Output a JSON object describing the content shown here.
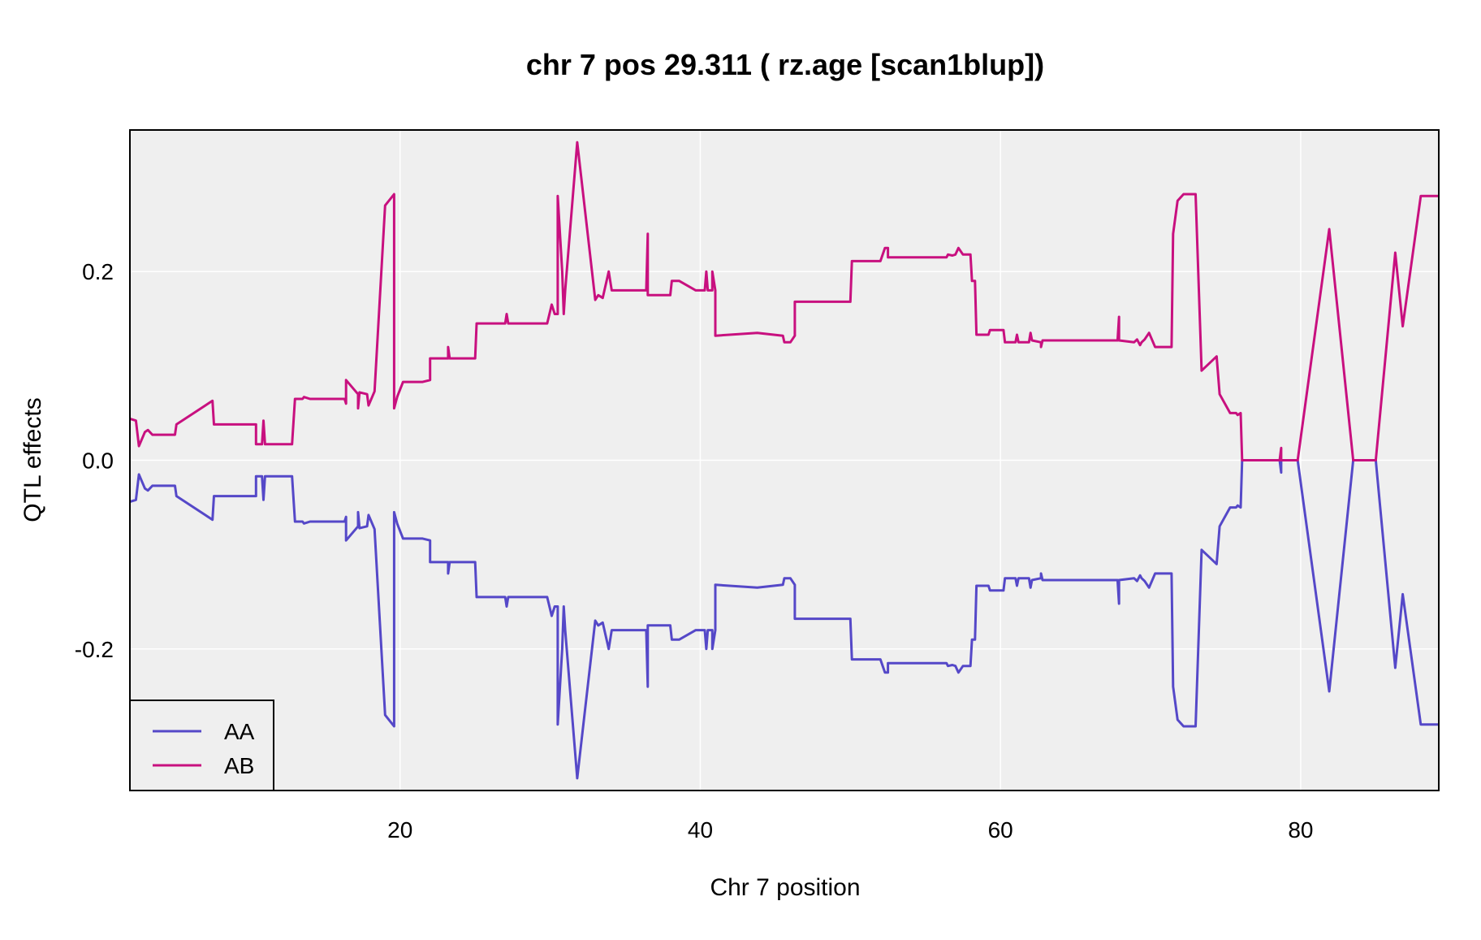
{
  "chart_data": {
    "type": "line",
    "title": "chr 7 pos 29.311 ( rz.age  [scan1blup])",
    "xlabel": "Chr 7 position",
    "ylabel": "QTL effects",
    "xlim": [
      2,
      89.2
    ],
    "ylim": [
      -0.35,
      0.35
    ],
    "x_ticks": [
      "20",
      "40",
      "60",
      "80"
    ],
    "x_tick_values": [
      20,
      40,
      60,
      80
    ],
    "y_ticks": [
      "-0.2",
      "0.0",
      "0.2"
    ],
    "y_tick_values": [
      -0.2,
      0.0,
      0.2
    ],
    "grid": true,
    "legend_position": "bottom-left",
    "colors": {
      "panel_background": "#efefef",
      "grid": "#ffffff",
      "AA": "#5548c8",
      "AB": "#c8107f"
    },
    "series": [
      {
        "name": "AA",
        "color": "#5548c8",
        "points": [
          [
            2.0,
            -0.044
          ],
          [
            2.4,
            -0.042
          ],
          [
            2.6,
            -0.015
          ],
          [
            3.0,
            -0.03
          ],
          [
            3.2,
            -0.032
          ],
          [
            3.5,
            -0.027
          ],
          [
            5.0,
            -0.027
          ],
          [
            5.1,
            -0.038
          ],
          [
            7.5,
            -0.063
          ],
          [
            7.6,
            -0.038
          ],
          [
            10.4,
            -0.038
          ],
          [
            10.4,
            -0.017
          ],
          [
            10.8,
            -0.017
          ],
          [
            10.9,
            -0.042
          ],
          [
            11.0,
            -0.017
          ],
          [
            12.8,
            -0.017
          ],
          [
            13.0,
            -0.065
          ],
          [
            13.5,
            -0.065
          ],
          [
            13.6,
            -0.067
          ],
          [
            14.0,
            -0.065
          ],
          [
            16.3,
            -0.065
          ],
          [
            16.4,
            -0.06
          ],
          [
            16.4,
            -0.085
          ],
          [
            17.2,
            -0.07
          ],
          [
            17.2,
            -0.055
          ],
          [
            17.3,
            -0.072
          ],
          [
            17.8,
            -0.07
          ],
          [
            17.9,
            -0.058
          ],
          [
            18.3,
            -0.073
          ],
          [
            19.0,
            -0.27
          ],
          [
            19.6,
            -0.282
          ],
          [
            19.6,
            -0.055
          ],
          [
            19.8,
            -0.067
          ],
          [
            20.2,
            -0.083
          ],
          [
            21.5,
            -0.083
          ],
          [
            22.0,
            -0.085
          ],
          [
            22.0,
            -0.108
          ],
          [
            23.2,
            -0.108
          ],
          [
            23.2,
            -0.12
          ],
          [
            23.3,
            -0.108
          ],
          [
            25.0,
            -0.108
          ],
          [
            25.1,
            -0.145
          ],
          [
            27.0,
            -0.145
          ],
          [
            27.1,
            -0.155
          ],
          [
            27.2,
            -0.145
          ],
          [
            29.8,
            -0.145
          ],
          [
            30.1,
            -0.165
          ],
          [
            30.3,
            -0.155
          ],
          [
            30.5,
            -0.155
          ],
          [
            30.5,
            -0.28
          ],
          [
            30.8,
            -0.2
          ],
          [
            30.9,
            -0.155
          ],
          [
            31.0,
            -0.18
          ],
          [
            31.8,
            -0.337
          ],
          [
            33.0,
            -0.17
          ],
          [
            33.2,
            -0.175
          ],
          [
            33.5,
            -0.172
          ],
          [
            33.9,
            -0.2
          ],
          [
            34.1,
            -0.18
          ],
          [
            36.4,
            -0.18
          ],
          [
            36.5,
            -0.24
          ],
          [
            36.5,
            -0.175
          ],
          [
            38.0,
            -0.175
          ],
          [
            38.1,
            -0.19
          ],
          [
            38.6,
            -0.19
          ],
          [
            39.7,
            -0.18
          ],
          [
            40.3,
            -0.18
          ],
          [
            40.4,
            -0.2
          ],
          [
            40.5,
            -0.18
          ],
          [
            40.8,
            -0.18
          ],
          [
            40.8,
            -0.2
          ],
          [
            41.0,
            -0.18
          ],
          [
            41.0,
            -0.132
          ],
          [
            43.8,
            -0.135
          ],
          [
            45.5,
            -0.132
          ],
          [
            45.6,
            -0.125
          ],
          [
            46.0,
            -0.125
          ],
          [
            46.3,
            -0.132
          ],
          [
            46.3,
            -0.168
          ],
          [
            50.0,
            -0.168
          ],
          [
            50.1,
            -0.211
          ],
          [
            52.0,
            -0.211
          ],
          [
            52.3,
            -0.225
          ],
          [
            52.5,
            -0.225
          ],
          [
            52.5,
            -0.215
          ],
          [
            56.4,
            -0.215
          ],
          [
            56.5,
            -0.218
          ],
          [
            56.8,
            -0.217
          ],
          [
            57.0,
            -0.218
          ],
          [
            57.2,
            -0.225
          ],
          [
            57.5,
            -0.218
          ],
          [
            58.0,
            -0.218
          ],
          [
            58.1,
            -0.19
          ],
          [
            58.3,
            -0.19
          ],
          [
            58.4,
            -0.133
          ],
          [
            59.2,
            -0.133
          ],
          [
            59.3,
            -0.138
          ],
          [
            60.2,
            -0.138
          ],
          [
            60.3,
            -0.125
          ],
          [
            61.0,
            -0.125
          ],
          [
            61.1,
            -0.133
          ],
          [
            61.2,
            -0.125
          ],
          [
            61.9,
            -0.125
          ],
          [
            62.0,
            -0.135
          ],
          [
            62.1,
            -0.127
          ],
          [
            62.7,
            -0.125
          ],
          [
            62.7,
            -0.12
          ],
          [
            62.8,
            -0.127
          ],
          [
            67.8,
            -0.127
          ],
          [
            67.9,
            -0.152
          ],
          [
            67.9,
            -0.127
          ],
          [
            68.9,
            -0.125
          ],
          [
            69.1,
            -0.128
          ],
          [
            69.3,
            -0.122
          ],
          [
            69.4,
            -0.125
          ],
          [
            69.6,
            -0.128
          ],
          [
            69.9,
            -0.135
          ],
          [
            70.3,
            -0.12
          ],
          [
            71.4,
            -0.12
          ],
          [
            71.5,
            -0.24
          ],
          [
            71.8,
            -0.275
          ],
          [
            72.2,
            -0.282
          ],
          [
            73.0,
            -0.282
          ],
          [
            73.0,
            -0.282
          ],
          [
            73.4,
            -0.095
          ],
          [
            74.4,
            -0.11
          ],
          [
            74.6,
            -0.07
          ],
          [
            75.3,
            -0.05
          ],
          [
            75.7,
            -0.05
          ],
          [
            75.8,
            -0.048
          ],
          [
            76.0,
            -0.05
          ],
          [
            76.1,
            0.0
          ],
          [
            78.6,
            0.0
          ],
          [
            78.7,
            -0.013
          ],
          [
            78.7,
            0.0
          ],
          [
            79.8,
            0.0
          ],
          [
            81.9,
            -0.245
          ],
          [
            83.5,
            -0.0
          ],
          [
            85.0,
            0.0
          ],
          [
            86.3,
            -0.22
          ],
          [
            86.8,
            -0.142
          ],
          [
            88.0,
            -0.28
          ],
          [
            89.2,
            -0.28
          ]
        ]
      },
      {
        "name": "AB",
        "color": "#c8107f",
        "points": [
          [
            2.0,
            0.044
          ],
          [
            2.4,
            0.042
          ],
          [
            2.6,
            0.015
          ],
          [
            3.0,
            0.03
          ],
          [
            3.2,
            0.032
          ],
          [
            3.5,
            0.027
          ],
          [
            5.0,
            0.027
          ],
          [
            5.1,
            0.038
          ],
          [
            7.5,
            0.063
          ],
          [
            7.6,
            0.038
          ],
          [
            10.4,
            0.038
          ],
          [
            10.4,
            0.017
          ],
          [
            10.8,
            0.017
          ],
          [
            10.9,
            0.042
          ],
          [
            11.0,
            0.017
          ],
          [
            12.8,
            0.017
          ],
          [
            13.0,
            0.065
          ],
          [
            13.5,
            0.065
          ],
          [
            13.6,
            0.067
          ],
          [
            14.0,
            0.065
          ],
          [
            16.3,
            0.065
          ],
          [
            16.4,
            0.06
          ],
          [
            16.4,
            0.085
          ],
          [
            17.2,
            0.07
          ],
          [
            17.2,
            0.055
          ],
          [
            17.3,
            0.072
          ],
          [
            17.8,
            0.07
          ],
          [
            17.9,
            0.058
          ],
          [
            18.3,
            0.073
          ],
          [
            19.0,
            0.27
          ],
          [
            19.6,
            0.282
          ],
          [
            19.6,
            0.055
          ],
          [
            19.8,
            0.067
          ],
          [
            20.2,
            0.083
          ],
          [
            21.5,
            0.083
          ],
          [
            22.0,
            0.085
          ],
          [
            22.0,
            0.108
          ],
          [
            23.2,
            0.108
          ],
          [
            23.2,
            0.12
          ],
          [
            23.3,
            0.108
          ],
          [
            25.0,
            0.108
          ],
          [
            25.1,
            0.145
          ],
          [
            27.0,
            0.145
          ],
          [
            27.1,
            0.155
          ],
          [
            27.2,
            0.145
          ],
          [
            29.8,
            0.145
          ],
          [
            30.1,
            0.165
          ],
          [
            30.3,
            0.155
          ],
          [
            30.5,
            0.155
          ],
          [
            30.5,
            0.28
          ],
          [
            30.8,
            0.2
          ],
          [
            30.9,
            0.155
          ],
          [
            31.0,
            0.18
          ],
          [
            31.8,
            0.337
          ],
          [
            33.0,
            0.17
          ],
          [
            33.2,
            0.175
          ],
          [
            33.5,
            0.172
          ],
          [
            33.9,
            0.2
          ],
          [
            34.1,
            0.18
          ],
          [
            36.4,
            0.18
          ],
          [
            36.5,
            0.24
          ],
          [
            36.5,
            0.175
          ],
          [
            38.0,
            0.175
          ],
          [
            38.1,
            0.19
          ],
          [
            38.6,
            0.19
          ],
          [
            39.7,
            0.18
          ],
          [
            40.3,
            0.18
          ],
          [
            40.4,
            0.2
          ],
          [
            40.5,
            0.18
          ],
          [
            40.8,
            0.18
          ],
          [
            40.8,
            0.2
          ],
          [
            41.0,
            0.18
          ],
          [
            41.0,
            0.132
          ],
          [
            43.8,
            0.135
          ],
          [
            45.5,
            0.132
          ],
          [
            45.6,
            0.125
          ],
          [
            46.0,
            0.125
          ],
          [
            46.3,
            0.132
          ],
          [
            46.3,
            0.168
          ],
          [
            50.0,
            0.168
          ],
          [
            50.1,
            0.211
          ],
          [
            52.0,
            0.211
          ],
          [
            52.3,
            0.225
          ],
          [
            52.5,
            0.225
          ],
          [
            52.5,
            0.215
          ],
          [
            56.4,
            0.215
          ],
          [
            56.5,
            0.218
          ],
          [
            56.8,
            0.217
          ],
          [
            57.0,
            0.218
          ],
          [
            57.2,
            0.225
          ],
          [
            57.5,
            0.218
          ],
          [
            58.0,
            0.218
          ],
          [
            58.1,
            0.19
          ],
          [
            58.3,
            0.19
          ],
          [
            58.4,
            0.133
          ],
          [
            59.2,
            0.133
          ],
          [
            59.3,
            0.138
          ],
          [
            60.2,
            0.138
          ],
          [
            60.3,
            0.125
          ],
          [
            61.0,
            0.125
          ],
          [
            61.1,
            0.133
          ],
          [
            61.2,
            0.125
          ],
          [
            61.9,
            0.125
          ],
          [
            62.0,
            0.135
          ],
          [
            62.1,
            0.127
          ],
          [
            62.7,
            0.125
          ],
          [
            62.7,
            0.12
          ],
          [
            62.8,
            0.127
          ],
          [
            67.8,
            0.127
          ],
          [
            67.9,
            0.152
          ],
          [
            67.9,
            0.127
          ],
          [
            68.9,
            0.125
          ],
          [
            69.1,
            0.128
          ],
          [
            69.3,
            0.122
          ],
          [
            69.4,
            0.125
          ],
          [
            69.6,
            0.128
          ],
          [
            69.9,
            0.135
          ],
          [
            70.3,
            0.12
          ],
          [
            71.4,
            0.12
          ],
          [
            71.5,
            0.24
          ],
          [
            71.8,
            0.275
          ],
          [
            72.2,
            0.282
          ],
          [
            73.0,
            0.282
          ],
          [
            73.0,
            0.282
          ],
          [
            73.4,
            0.095
          ],
          [
            74.4,
            0.11
          ],
          [
            74.6,
            0.07
          ],
          [
            75.3,
            0.05
          ],
          [
            75.7,
            0.05
          ],
          [
            75.8,
            0.048
          ],
          [
            76.0,
            0.05
          ],
          [
            76.1,
            0.0
          ],
          [
            78.6,
            0.0
          ],
          [
            78.7,
            0.013
          ],
          [
            78.7,
            0.0
          ],
          [
            79.8,
            0.0
          ],
          [
            81.9,
            0.245
          ],
          [
            83.5,
            0.0
          ],
          [
            85.0,
            0.0
          ],
          [
            86.3,
            0.22
          ],
          [
            86.8,
            0.142
          ],
          [
            88.0,
            0.28
          ],
          [
            89.2,
            0.28
          ]
        ]
      }
    ]
  }
}
